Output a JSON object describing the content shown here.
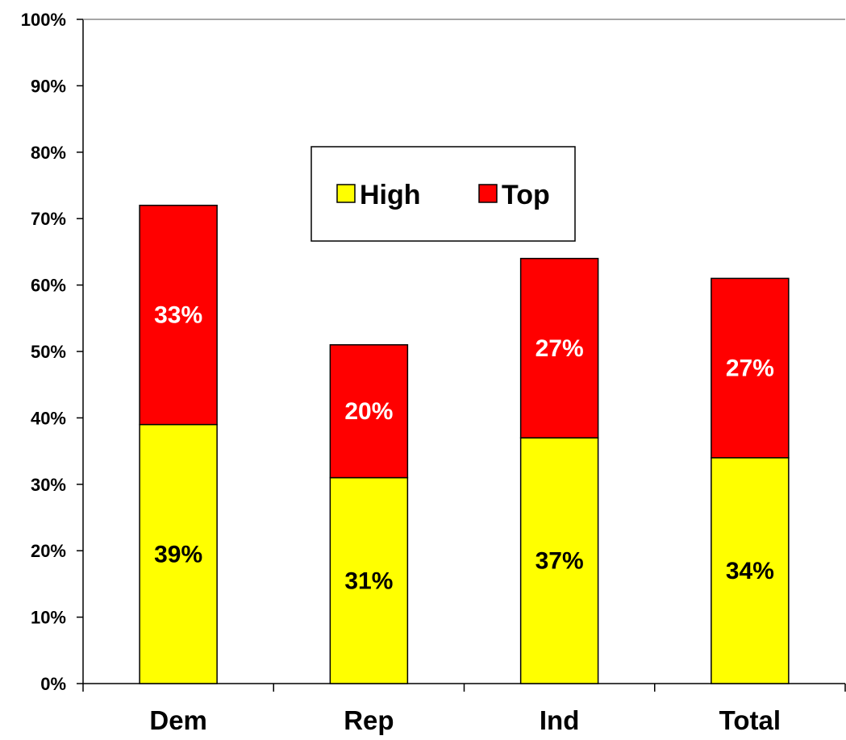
{
  "chart_data": {
    "type": "bar",
    "stacked": true,
    "categories": [
      "Dem",
      "Rep",
      "Ind",
      "Total"
    ],
    "series": [
      {
        "name": "High",
        "values": [
          39,
          31,
          37,
          34
        ],
        "labels": [
          "39%",
          "31%",
          "37%",
          "34%"
        ],
        "color": "#ffff00",
        "label_color": "#000000"
      },
      {
        "name": "Top",
        "values": [
          33,
          20,
          27,
          27
        ],
        "labels": [
          "33%",
          "20%",
          "27%",
          "27%"
        ],
        "color": "#ff0000",
        "label_color": "#ffffff"
      }
    ],
    "ylim": [
      0,
      100
    ],
    "yticks": [
      "0%",
      "10%",
      "20%",
      "30%",
      "40%",
      "50%",
      "60%",
      "70%",
      "80%",
      "90%",
      "100%"
    ],
    "grid": false,
    "legend": {
      "position": "center-top",
      "entries": [
        "High",
        "Top"
      ]
    },
    "title": "",
    "xlabel": "",
    "ylabel": ""
  }
}
